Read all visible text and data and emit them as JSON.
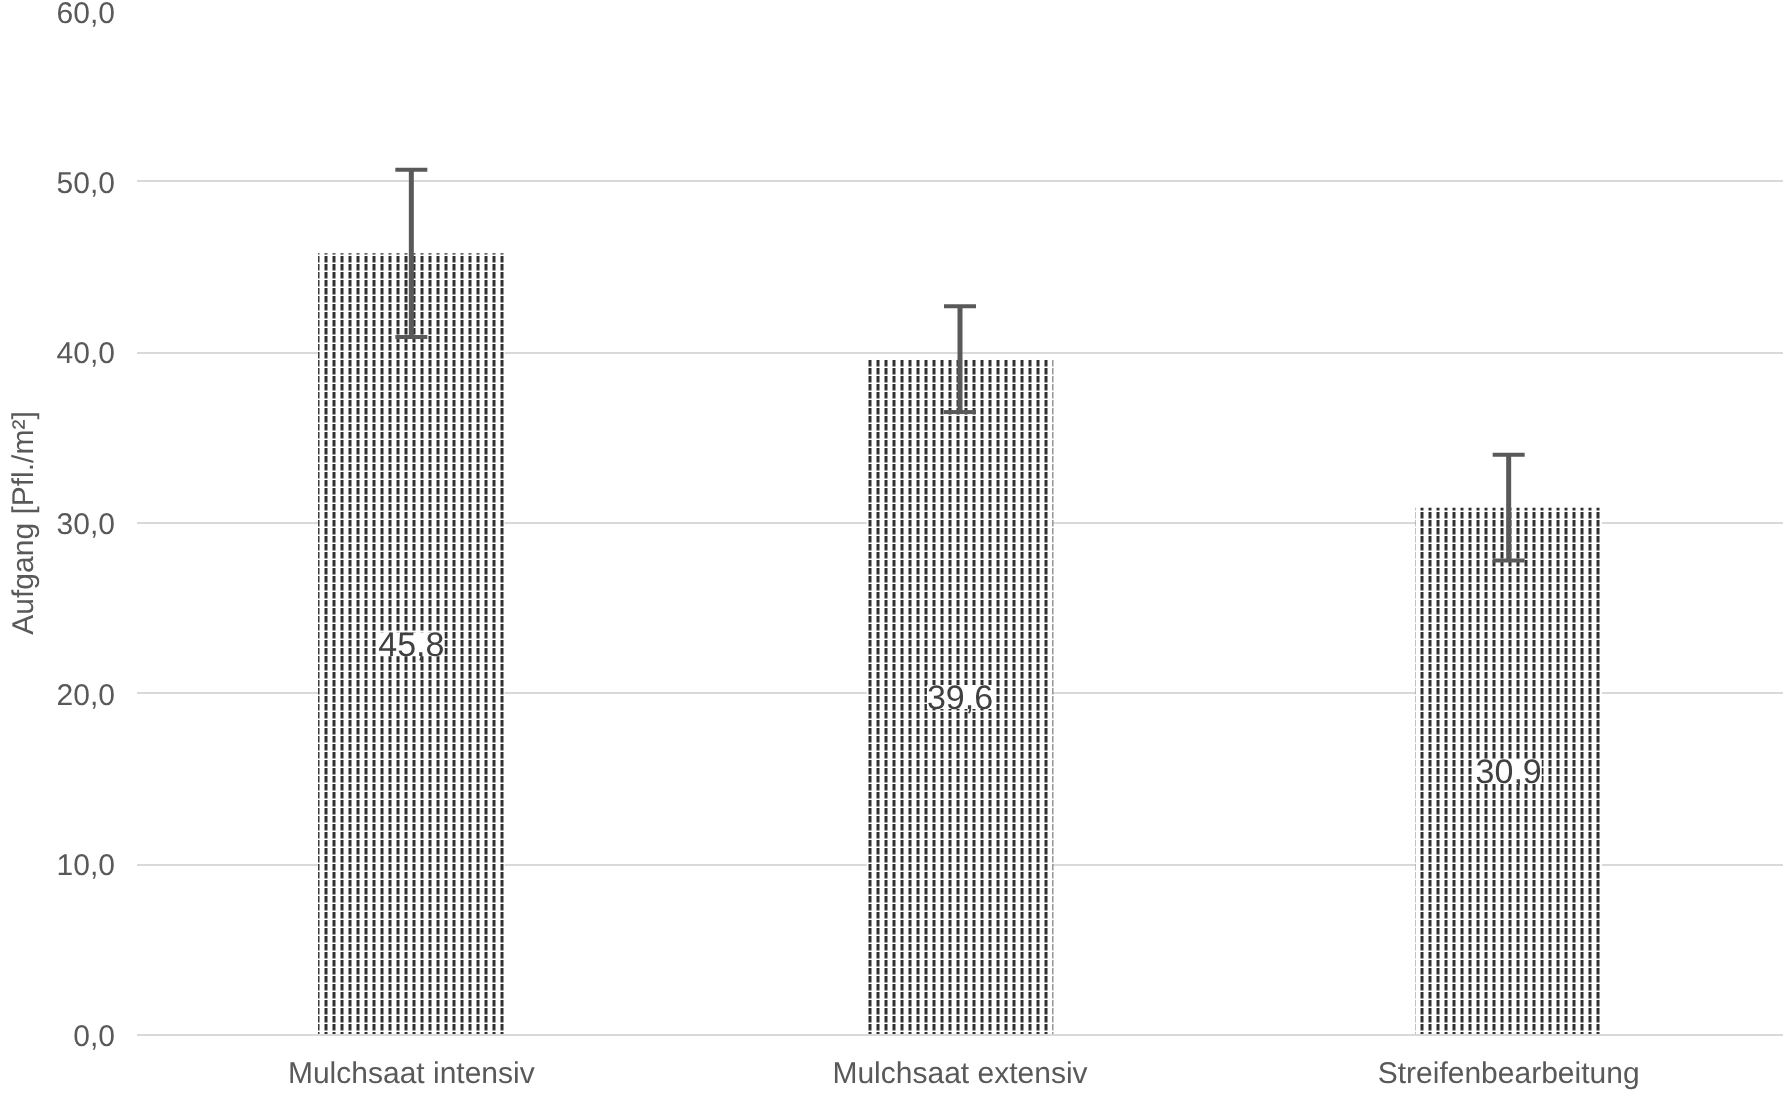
{
  "chart_data": {
    "type": "bar",
    "ylabel": "Aufgang [Pfl./m²]",
    "categories": [
      "Mulchsaat intensiv",
      "Mulchsaat extensiv",
      "Streifenbearbeitung"
    ],
    "values": [
      45.8,
      39.6,
      30.9
    ],
    "color": "#303030",
    "errors": [
      4.9,
      3.1,
      3.1
    ],
    "value_labels": [
      "45,8",
      "39,6",
      "30,9"
    ],
    "ylim": [
      0,
      60
    ],
    "yticks": [
      {
        "value": 0,
        "label": "0,0"
      },
      {
        "value": 10,
        "label": "10,0"
      },
      {
        "value": 20,
        "label": "20,0"
      },
      {
        "value": 30,
        "label": "30,0"
      },
      {
        "value": 40,
        "label": "40,0"
      },
      {
        "value": 50,
        "label": "50,0"
      },
      {
        "value": 60,
        "label": "60,0"
      }
    ],
    "grid": "y"
  }
}
